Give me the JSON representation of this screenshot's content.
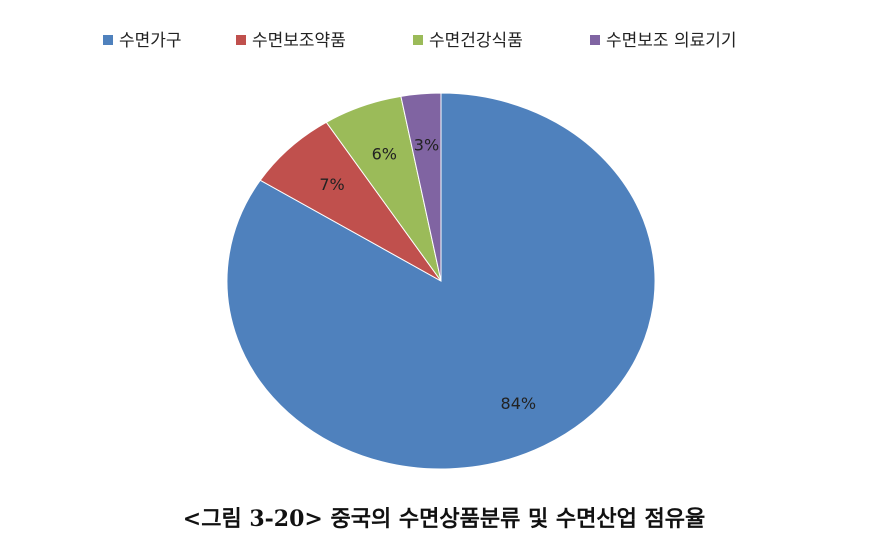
{
  "chart_data": {
    "type": "pie",
    "title": "<그림 3-20> 중국의 수면상품분류 및 수면산업 점유율",
    "categories": [
      "수면가구",
      "수면보조약품",
      "수면건강식품",
      "수면보조 의료기기"
    ],
    "values": [
      84,
      7,
      6,
      3
    ],
    "value_labels": [
      "84%",
      "7%",
      "6%",
      "3%"
    ],
    "colors": [
      "#4f81bd",
      "#c0504d",
      "#9bbb59",
      "#8064a2"
    ],
    "legend": "top"
  }
}
